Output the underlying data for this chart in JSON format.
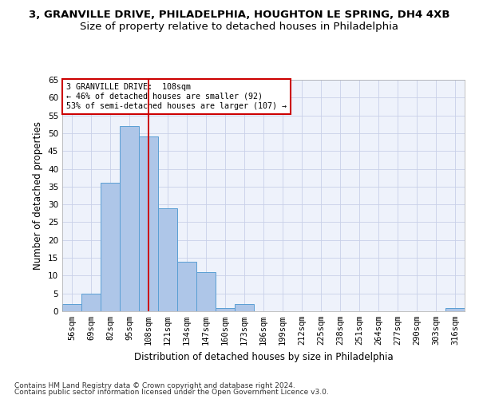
{
  "title1": "3, GRANVILLE DRIVE, PHILADELPHIA, HOUGHTON LE SPRING, DH4 4XB",
  "title2": "Size of property relative to detached houses in Philadelphia",
  "xlabel": "Distribution of detached houses by size in Philadelphia",
  "ylabel": "Number of detached properties",
  "categories": [
    "56sqm",
    "69sqm",
    "82sqm",
    "95sqm",
    "108sqm",
    "121sqm",
    "134sqm",
    "147sqm",
    "160sqm",
    "173sqm",
    "186sqm",
    "199sqm",
    "212sqm",
    "225sqm",
    "238sqm",
    "251sqm",
    "264sqm",
    "277sqm",
    "290sqm",
    "303sqm",
    "316sqm"
  ],
  "values": [
    2,
    5,
    36,
    52,
    49,
    29,
    14,
    11,
    1,
    2,
    0,
    0,
    0,
    0,
    0,
    0,
    0,
    0,
    0,
    0,
    1
  ],
  "bar_color": "#aec6e8",
  "bar_edge_color": "#5a9fd4",
  "vline_x": 4,
  "vline_color": "#cc0000",
  "annotation_line1": "3 GRANVILLE DRIVE:  108sqm",
  "annotation_line2": "← 46% of detached houses are smaller (92)",
  "annotation_line3": "53% of semi-detached houses are larger (107) →",
  "annotation_box_color": "#cc0000",
  "ylim": [
    0,
    65
  ],
  "yticks": [
    0,
    5,
    10,
    15,
    20,
    25,
    30,
    35,
    40,
    45,
    50,
    55,
    60,
    65
  ],
  "footnote1": "Contains HM Land Registry data © Crown copyright and database right 2024.",
  "footnote2": "Contains public sector information licensed under the Open Government Licence v3.0.",
  "bg_color": "#eef2fb",
  "grid_color": "#c8d0e8",
  "title1_fontsize": 9.5,
  "title2_fontsize": 9.5,
  "axis_fontsize": 8.5,
  "tick_fontsize": 7.5,
  "footnote_fontsize": 6.5
}
